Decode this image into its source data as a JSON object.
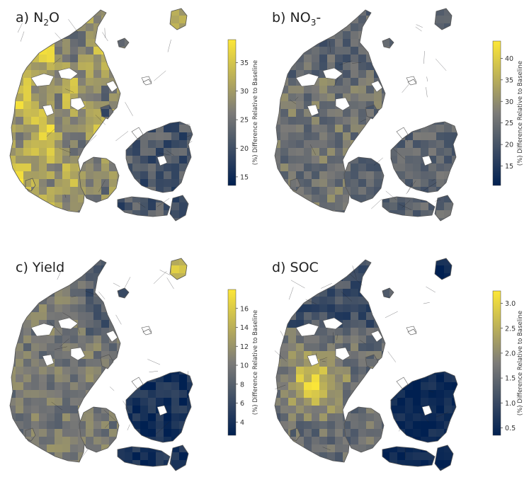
{
  "colorbar_label": "(%) Difference Relative to Baseline",
  "colormap": {
    "low": "#002051",
    "mid": "#7c7b78",
    "high": "#fde737"
  },
  "outline_color": "#555555",
  "panels": [
    {
      "key": "a",
      "prefix": "a) ",
      "name": "N",
      "sub": "2",
      "suffix": "O",
      "ticks": [
        "15",
        "20",
        "25",
        "30",
        "35"
      ],
      "range": [
        13.5,
        39
      ],
      "scheme": "a"
    },
    {
      "key": "b",
      "prefix": "b) ",
      "name": "NO",
      "sub": "3",
      "suffix": "-",
      "ticks": [
        "15",
        "20",
        "25",
        "30",
        "35",
        "40"
      ],
      "range": [
        10.5,
        44
      ],
      "scheme": "b"
    },
    {
      "key": "c",
      "prefix": "c) ",
      "name": "Yield",
      "sub": "",
      "suffix": "",
      "ticks": [
        "4",
        "6",
        "8",
        "10",
        "12",
        "14",
        "16"
      ],
      "range": [
        2.6,
        18
      ],
      "scheme": "c"
    },
    {
      "key": "d",
      "prefix": "d) ",
      "name": "SOC",
      "sub": "",
      "suffix": "",
      "ticks": [
        "0.5",
        "1.0",
        "1.5",
        "2.0",
        "2.5",
        "3.0"
      ],
      "range": [
        0.35,
        3.25
      ],
      "scheme": "d"
    }
  ]
}
